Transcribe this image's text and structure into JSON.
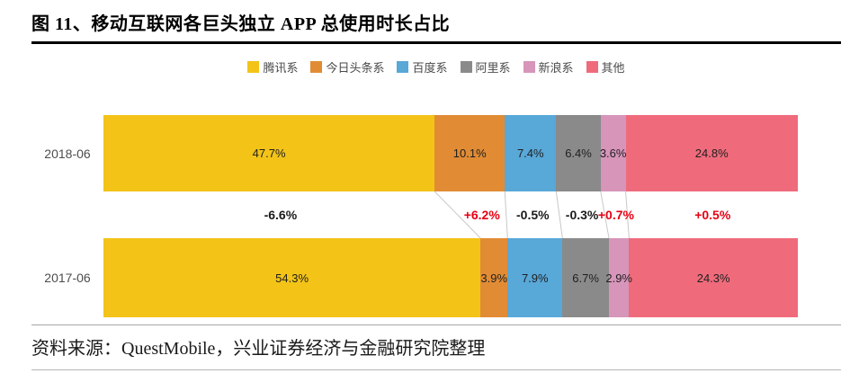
{
  "title": "图 11、移动互联网各巨头独立 APP 总使用时长占比",
  "source": "资料来源：QuestMobile，兴业证券经济与金融研究院整理",
  "chart_data": {
    "type": "bar",
    "subtype": "horizontal-stacked-comparison",
    "title": "移动互联网各巨头独立 APP 总使用时长占比",
    "unit": "%",
    "legend_position": "top-center",
    "series": [
      {
        "name": "腾讯系",
        "color": "#F3C318"
      },
      {
        "name": "今日头条系",
        "color": "#E18C35"
      },
      {
        "name": "百度系",
        "color": "#58A8D8"
      },
      {
        "name": "阿里系",
        "color": "#8A8A8A"
      },
      {
        "name": "新浪系",
        "color": "#D795BA"
      },
      {
        "name": "其他",
        "color": "#EF6B7B"
      }
    ],
    "rows": [
      {
        "label": "2018-06",
        "values": [
          47.7,
          10.1,
          7.4,
          6.4,
          3.6,
          24.8
        ]
      },
      {
        "label": "2017-06",
        "values": [
          54.3,
          3.9,
          7.9,
          6.7,
          2.9,
          24.3
        ]
      }
    ],
    "changes": [
      "-6.6%",
      "+6.2%",
      "-0.5%",
      "-0.3%",
      "+0.7%",
      "+0.5%"
    ],
    "positive_change_color": "#E60012",
    "negative_change_color": "#1a1a1a",
    "connector_line_color": "#c8c8c8"
  }
}
